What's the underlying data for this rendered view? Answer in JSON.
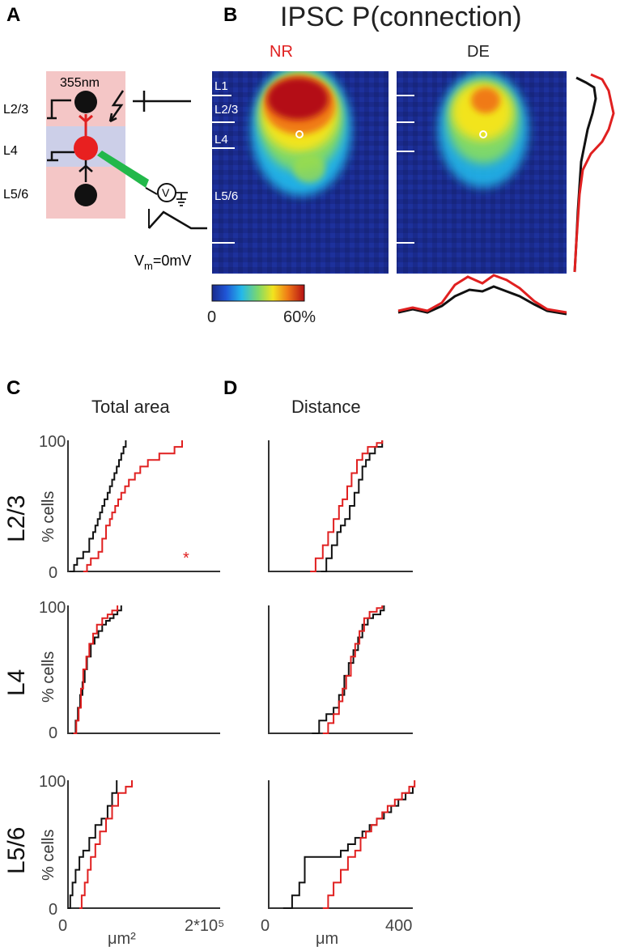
{
  "panels": {
    "A": {
      "label": "A",
      "layers": [
        "L2/3",
        "L4",
        "L5/6"
      ],
      "stim_label": "355nm",
      "vm_prefix": "V",
      "vm_sub": "m",
      "vm_suffix": "=0mV",
      "clamp_symbol": "V"
    },
    "B": {
      "label": "B",
      "title": "IPSC P(connection)",
      "map_NR_label": "NR",
      "map_DE_label": "DE",
      "layers": [
        "L1",
        "L2/3",
        "L4",
        "L5/6"
      ],
      "colorbar_min": "0",
      "colorbar_max": "60%"
    },
    "C": {
      "label": "C",
      "title": "Total area",
      "ylabel": "% cells",
      "xticks": [
        "0",
        "2*10⁵"
      ],
      "xlabel": "μm²",
      "significance": "*"
    },
    "D": {
      "label": "D",
      "title": "Distance",
      "xticks": [
        "0",
        "400"
      ],
      "xlabel": "μm"
    }
  },
  "row_labels": [
    "L2/3",
    "L4",
    "L5/6"
  ],
  "y_ticks": [
    "0",
    "100"
  ],
  "colors": {
    "NR": "#e02020",
    "DE": "#111111",
    "pink": "#f4c6c6",
    "lavender": "#cccfe8",
    "heat_bg": "#1a2a8c",
    "green": "#22b84a"
  },
  "chart_data": [
    {
      "type": "line",
      "title": "Total area",
      "row": "L2/3",
      "xlim": [
        0,
        200000
      ],
      "ylim": [
        0,
        100
      ],
      "xlabel": "μm²",
      "ylabel": "% cells",
      "series": [
        {
          "name": "DE",
          "x": [
            2000,
            8000,
            12000,
            20000,
            28000,
            33000,
            36000,
            39000,
            42000,
            45000,
            48000,
            52000,
            55000,
            58000,
            61000,
            64000,
            67000,
            70000,
            73000,
            76000
          ],
          "y": [
            0,
            5,
            10,
            15,
            25,
            30,
            35,
            40,
            45,
            50,
            55,
            60,
            65,
            70,
            75,
            80,
            85,
            90,
            95,
            100
          ]
        },
        {
          "name": "NR",
          "x": [
            20000,
            25000,
            30000,
            40000,
            45000,
            50000,
            55000,
            58000,
            62000,
            66000,
            70000,
            75000,
            80000,
            88000,
            95000,
            105000,
            120000,
            140000,
            150000
          ],
          "y": [
            0,
            5,
            10,
            15,
            25,
            35,
            40,
            45,
            50,
            55,
            60,
            65,
            70,
            75,
            80,
            85,
            90,
            95,
            100
          ]
        }
      ]
    },
    {
      "type": "line",
      "title": "Distance",
      "row": "L2/3",
      "xlim": [
        0,
        400
      ],
      "ylim": [
        0,
        100
      ],
      "xlabel": "μm",
      "ylabel": "% cells",
      "series": [
        {
          "name": "DE",
          "x": [
            145,
            160,
            175,
            190,
            200,
            212,
            225,
            238,
            250,
            260,
            270,
            280,
            295,
            315
          ],
          "y": [
            0,
            10,
            20,
            30,
            35,
            40,
            50,
            60,
            70,
            80,
            85,
            90,
            95,
            100
          ]
        },
        {
          "name": "NR",
          "x": [
            115,
            130,
            150,
            165,
            180,
            195,
            205,
            218,
            230,
            245,
            260,
            275,
            300,
            315
          ],
          "y": [
            0,
            10,
            20,
            30,
            40,
            50,
            55,
            65,
            75,
            85,
            90,
            95,
            98,
            100
          ]
        }
      ]
    },
    {
      "type": "line",
      "title": "Total area",
      "row": "L4",
      "xlim": [
        0,
        200000
      ],
      "ylim": [
        0,
        100
      ],
      "xlabel": "μm²",
      "ylabel": "% cells",
      "series": [
        {
          "name": "DE",
          "x": [
            5000,
            10000,
            13000,
            16000,
            19000,
            22000,
            25000,
            30000,
            35000,
            40000,
            45000,
            50000,
            55000,
            60000,
            65000,
            70000
          ],
          "y": [
            0,
            10,
            20,
            30,
            40,
            50,
            60,
            70,
            75,
            80,
            85,
            88,
            90,
            93,
            96,
            100
          ]
        },
        {
          "name": "NR",
          "x": [
            7000,
            11000,
            14000,
            17000,
            20000,
            24000,
            28000,
            33000,
            38000,
            45000,
            52000,
            58000,
            65000
          ],
          "y": [
            0,
            10,
            20,
            35,
            50,
            60,
            70,
            78,
            85,
            90,
            93,
            96,
            100
          ]
        }
      ]
    },
    {
      "type": "line",
      "title": "Distance",
      "row": "L4",
      "xlim": [
        0,
        400
      ],
      "ylim": [
        0,
        100
      ],
      "xlabel": "μm",
      "ylabel": "% cells",
      "series": [
        {
          "name": "DE",
          "x": [
            120,
            140,
            160,
            180,
            195,
            210,
            222,
            235,
            248,
            260,
            275,
            290,
            310,
            320
          ],
          "y": [
            0,
            10,
            15,
            20,
            30,
            45,
            55,
            65,
            75,
            85,
            90,
            93,
            96,
            100
          ]
        },
        {
          "name": "NR",
          "x": [
            150,
            165,
            180,
            195,
            205,
            215,
            228,
            240,
            252,
            265,
            280,
            300,
            315
          ],
          "y": [
            0,
            8,
            15,
            25,
            35,
            45,
            60,
            70,
            80,
            90,
            95,
            98,
            100
          ]
        }
      ]
    },
    {
      "type": "line",
      "title": "Total area",
      "row": "L5/6",
      "xlim": [
        0,
        200000
      ],
      "ylim": [
        0,
        100
      ],
      "xlabel": "μm²",
      "ylabel": "% cells",
      "series": [
        {
          "name": "DE",
          "x": [
            0,
            3000,
            6000,
            10000,
            15000,
            20000,
            28000,
            36000,
            44000,
            52000,
            58000,
            64000
          ],
          "y": [
            0,
            10,
            20,
            30,
            40,
            45,
            55,
            65,
            70,
            80,
            90,
            100
          ]
        },
        {
          "name": "NR",
          "x": [
            15000,
            18000,
            22000,
            26000,
            30000,
            36000,
            42000,
            50000,
            58000,
            66000,
            76000,
            84000
          ],
          "y": [
            0,
            10,
            20,
            30,
            40,
            50,
            60,
            70,
            80,
            90,
            95,
            100
          ]
        }
      ]
    },
    {
      "type": "line",
      "title": "Distance",
      "row": "L5/6",
      "xlim": [
        0,
        400
      ],
      "ylim": [
        0,
        100
      ],
      "xlabel": "μm",
      "ylabel": "% cells",
      "series": [
        {
          "name": "DE",
          "x": [
            40,
            65,
            85,
            100,
            185,
            200,
            220,
            240,
            260,
            280,
            300,
            320,
            340,
            360,
            380,
            400
          ],
          "y": [
            0,
            10,
            20,
            40,
            40,
            45,
            50,
            55,
            60,
            65,
            70,
            75,
            80,
            85,
            90,
            95
          ]
        },
        {
          "name": "NR",
          "x": [
            150,
            165,
            180,
            200,
            220,
            240,
            255,
            270,
            285,
            300,
            315,
            330,
            350,
            370,
            390,
            405
          ],
          "y": [
            0,
            10,
            20,
            30,
            40,
            45,
            55,
            60,
            65,
            70,
            75,
            80,
            85,
            90,
            95,
            100
          ]
        }
      ]
    }
  ]
}
